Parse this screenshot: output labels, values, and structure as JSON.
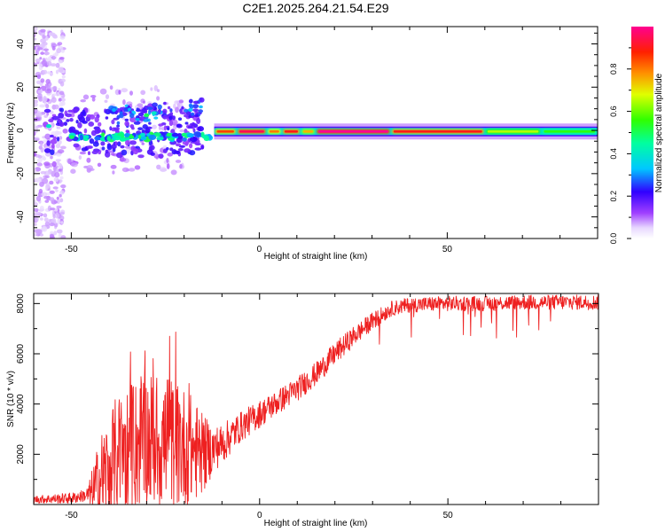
{
  "title": "C2E1.2025.264.21.54.E29",
  "chart_data": [
    {
      "type": "heatmap",
      "title": "C2E1.2025.264.21.54.E29",
      "xlabel": "Height of straight line (km)",
      "ylabel": "Frequency (Hz)",
      "xlim": [
        -60,
        90
      ],
      "ylim": [
        -50,
        48
      ],
      "xticks": [
        -50,
        0,
        50
      ],
      "xtick_labels": [
        "-50",
        "0",
        "50"
      ],
      "yticks": [
        -40,
        -20,
        0,
        20,
        40
      ],
      "ytick_labels": [
        "-40",
        "-20",
        "0",
        "20",
        "40"
      ],
      "colorbar": {
        "label": "Normalized spectral amplitude",
        "range": [
          0,
          1
        ],
        "ticks": [
          0.0,
          0.2,
          0.4,
          0.6,
          0.8
        ],
        "tick_labels": [
          "0.0",
          "0.2",
          "0.4",
          "0.6",
          "0.8"
        ],
        "colors": [
          "#ffffff",
          "#cfa0ff",
          "#6a00ff",
          "#0000ff",
          "#00ffff",
          "#00ff00",
          "#ffff00",
          "#ff9000",
          "#ff0000",
          "#ff0080"
        ]
      },
      "main_band": {
        "x_start": -12,
        "x_end": 90,
        "freq_center": -0.5,
        "segments": [
          {
            "x0": -12,
            "x1": -6,
            "amp": 0.85
          },
          {
            "x0": -6,
            "x1": 2,
            "amp": 0.95
          },
          {
            "x0": 2,
            "x1": 6,
            "amp": 0.8
          },
          {
            "x0": 6,
            "x1": 11,
            "amp": 0.9
          },
          {
            "x0": 11,
            "x1": 15,
            "amp": 0.75
          },
          {
            "x0": 15,
            "x1": 35,
            "amp": 1.0
          },
          {
            "x0": 35,
            "x1": 60,
            "amp": 0.9
          },
          {
            "x0": 60,
            "x1": 75,
            "amp": 0.65
          },
          {
            "x0": 75,
            "x1": 90,
            "amp": 0.55
          }
        ]
      },
      "scatter_region": {
        "x_start": -60,
        "x_end": -12,
        "freq_min": -50,
        "freq_max": 48
      }
    },
    {
      "type": "line",
      "xlabel": "Height of straight line (km)",
      "ylabel": "SNR (10 * v/v)",
      "xlim": [
        -60,
        90
      ],
      "ylim": [
        0,
        8400
      ],
      "xticks": [
        -50,
        0,
        50
      ],
      "xtick_labels": [
        "-50",
        "0",
        "50"
      ],
      "yticks": [
        2000,
        4000,
        6000,
        8000
      ],
      "ytick_labels": [
        "2000",
        "4000",
        "6000",
        "8000"
      ],
      "series": [
        {
          "name": "SNR",
          "color": "#ee2020",
          "trend_x": [
            -60,
            -50,
            -45,
            -42,
            -38,
            -30,
            -20,
            -15,
            -10,
            -5,
            0,
            5,
            10,
            15,
            20,
            25,
            30,
            35,
            40,
            50,
            60,
            70,
            80,
            90
          ],
          "trend_y": [
            200,
            250,
            400,
            1000,
            2000,
            2600,
            2300,
            2000,
            2400,
            3100,
            3600,
            4100,
            4600,
            5200,
            6000,
            6700,
            7300,
            7800,
            7950,
            8000,
            8000,
            8050,
            8050,
            8050
          ],
          "noise_x": [
            -60,
            -46,
            -42,
            -35,
            -25,
            -18,
            -12,
            -5,
            5,
            20,
            35,
            90
          ],
          "noise_amp": [
            150,
            250,
            2000,
            2600,
            2800,
            2200,
            900,
            600,
            500,
            450,
            300,
            300
          ]
        }
      ]
    }
  ]
}
